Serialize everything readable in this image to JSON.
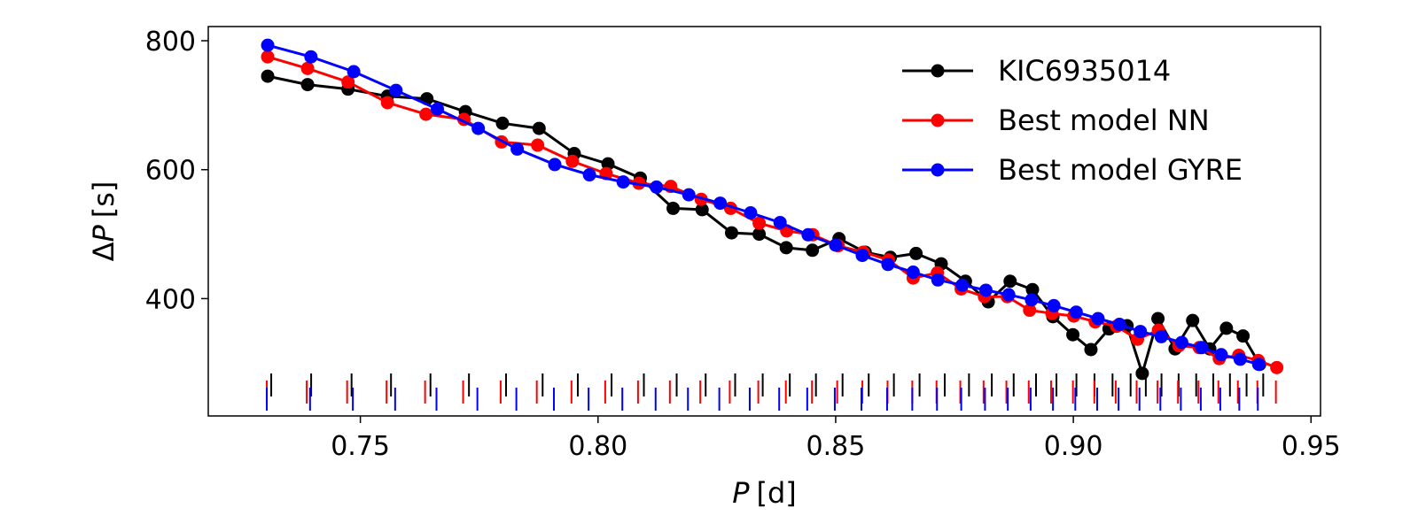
{
  "chart_data": {
    "type": "line",
    "xlabel": {
      "var": "P",
      "unit": "[d]"
    },
    "ylabel": {
      "prefix": "Δ",
      "var": "P",
      "unit": "[s]"
    },
    "xlim": [
      0.718,
      0.952
    ],
    "ylim": [
      218,
      822
    ],
    "xticks": [
      0.75,
      0.8,
      0.85,
      0.9,
      0.95
    ],
    "xtick_labels": [
      "0.75",
      "0.80",
      "0.85",
      "0.90",
      "0.95"
    ],
    "yticks": [
      400,
      600,
      800
    ],
    "ytick_labels": [
      "400",
      "600",
      "800"
    ],
    "grid": false,
    "legend_position": "top-right",
    "series": [
      {
        "name": "KIC6935014",
        "color": "#000000",
        "x": [
          0.7305,
          0.7389,
          0.7474,
          0.7557,
          0.764,
          0.7721,
          0.7799,
          0.7876,
          0.795,
          0.8021,
          0.8089,
          0.8158,
          0.8219,
          0.8281,
          0.8339,
          0.8396,
          0.8451,
          0.8507,
          0.8562,
          0.8615,
          0.8669,
          0.8722,
          0.8773,
          0.8821,
          0.8867,
          0.8914,
          0.8957,
          0.8999,
          0.9037,
          0.9075,
          0.9113,
          0.9145,
          0.9178,
          0.9214,
          0.9251,
          0.9287,
          0.9322,
          0.9357,
          0.9392
        ],
        "y": [
          745,
          732,
          725,
          714,
          710,
          690,
          672,
          664,
          625,
          609,
          587,
          540,
          538,
          502,
          500,
          479,
          475,
          493,
          472,
          464,
          470,
          454,
          427,
          395,
          427,
          414,
          372,
          344,
          321,
          353,
          358,
          284,
          369,
          322,
          366,
          322,
          354,
          342,
          298
        ]
      },
      {
        "name": "Best model NN",
        "color": "#ff0000",
        "x": [
          0.7305,
          0.7389,
          0.7474,
          0.7557,
          0.7638,
          0.7718,
          0.7797,
          0.7873,
          0.7946,
          0.8017,
          0.8086,
          0.8153,
          0.8217,
          0.8279,
          0.8339,
          0.8397,
          0.8452,
          0.8505,
          0.8558,
          0.8611,
          0.8663,
          0.8714,
          0.8764,
          0.8813,
          0.8861,
          0.8908,
          0.8955,
          0.9001,
          0.9046,
          0.9091,
          0.9135,
          0.9179,
          0.9222,
          0.9265,
          0.9307,
          0.9348,
          0.9389,
          0.9428
        ],
        "y": [
          775,
          757,
          736,
          704,
          686,
          678,
          643,
          638,
          613,
          594,
          579,
          574,
          554,
          540,
          517,
          505,
          499,
          482,
          472,
          460,
          432,
          440,
          415,
          403,
          403,
          382,
          377,
          373,
          364,
          357,
          337,
          351,
          327,
          324,
          307,
          312,
          304,
          293
        ]
      },
      {
        "name": "Best model GYRE",
        "color": "#0000ff",
        "x": [
          0.7305,
          0.7396,
          0.7486,
          0.7575,
          0.7662,
          0.7748,
          0.783,
          0.7909,
          0.7982,
          0.8053,
          0.8123,
          0.8191,
          0.8257,
          0.8321,
          0.8383,
          0.8442,
          0.85,
          0.8556,
          0.861,
          0.8663,
          0.8715,
          0.8766,
          0.8816,
          0.8864,
          0.8912,
          0.8959,
          0.9006,
          0.9052,
          0.9097,
          0.9141,
          0.9185,
          0.9228,
          0.927,
          0.9311,
          0.9351,
          0.939
        ],
        "y": [
          793,
          775,
          752,
          723,
          694,
          664,
          632,
          608,
          592,
          581,
          573,
          561,
          548,
          533,
          518,
          499,
          483,
          467,
          453,
          441,
          429,
          421,
          413,
          406,
          398,
          389,
          379,
          369,
          360,
          349,
          341,
          332,
          324,
          313,
          306,
          298
        ]
      }
    ]
  }
}
